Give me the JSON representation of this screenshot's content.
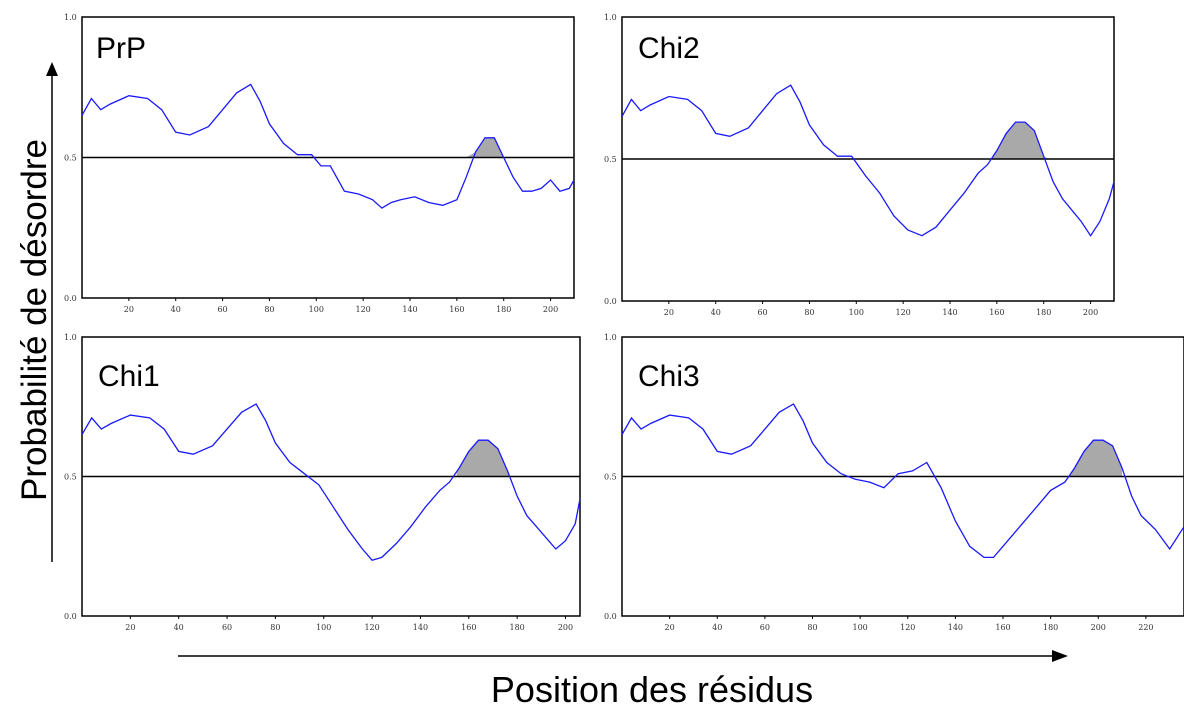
{
  "figure": {
    "ylabel": "Probabilité de désordre",
    "xlabel": "Position des résidus"
  },
  "chart_data": [
    {
      "type": "line",
      "title": "PrP",
      "ylim": [
        0,
        1
      ],
      "xlim": [
        0,
        210
      ],
      "yticks": [
        "0.0",
        "0.5",
        "1.0"
      ],
      "xticks": [
        20,
        40,
        60,
        80,
        100,
        120,
        140,
        160,
        180,
        200
      ],
      "threshold": 0.5,
      "series": [
        {
          "color": "#1a1aff",
          "x": [
            0,
            4,
            8,
            12,
            20,
            28,
            34,
            40,
            46,
            54,
            60,
            66,
            72,
            76,
            80,
            86,
            92,
            98,
            102,
            106,
            112,
            118,
            124,
            128,
            132,
            136,
            142,
            148,
            154,
            160,
            164,
            168,
            172,
            176,
            180,
            184,
            188,
            192,
            196,
            200,
            204,
            208,
            210
          ],
          "y": [
            0.65,
            0.71,
            0.67,
            0.69,
            0.72,
            0.71,
            0.67,
            0.59,
            0.58,
            0.61,
            0.67,
            0.73,
            0.76,
            0.7,
            0.62,
            0.55,
            0.51,
            0.51,
            0.47,
            0.47,
            0.38,
            0.37,
            0.35,
            0.32,
            0.34,
            0.35,
            0.36,
            0.34,
            0.33,
            0.35,
            0.43,
            0.52,
            0.57,
            0.57,
            0.5,
            0.43,
            0.38,
            0.38,
            0.39,
            0.42,
            0.38,
            0.39,
            0.42
          ]
        }
      ],
      "shaded_x": [
        164,
        184
      ]
    },
    {
      "type": "line",
      "title": "Chi2",
      "ylim": [
        0,
        1
      ],
      "xlim": [
        0,
        210
      ],
      "yticks": [
        "0.0",
        "0.5",
        "1.0"
      ],
      "xticks": [
        20,
        40,
        60,
        80,
        100,
        120,
        140,
        160,
        180,
        200
      ],
      "threshold": 0.5,
      "series": [
        {
          "color": "#1a1aff",
          "x": [
            0,
            4,
            8,
            12,
            20,
            28,
            34,
            40,
            46,
            54,
            60,
            66,
            72,
            76,
            80,
            86,
            92,
            98,
            104,
            110,
            116,
            122,
            128,
            134,
            140,
            146,
            152,
            156,
            160,
            164,
            168,
            172,
            176,
            180,
            184,
            188,
            192,
            196,
            200,
            204,
            208,
            210
          ],
          "y": [
            0.65,
            0.71,
            0.67,
            0.69,
            0.72,
            0.71,
            0.67,
            0.59,
            0.58,
            0.61,
            0.67,
            0.73,
            0.76,
            0.7,
            0.62,
            0.55,
            0.51,
            0.51,
            0.44,
            0.38,
            0.3,
            0.25,
            0.23,
            0.26,
            0.32,
            0.38,
            0.45,
            0.48,
            0.53,
            0.59,
            0.63,
            0.63,
            0.6,
            0.51,
            0.42,
            0.36,
            0.32,
            0.28,
            0.23,
            0.28,
            0.36,
            0.42
          ]
        }
      ],
      "shaded_x": [
        158,
        182
      ]
    },
    {
      "type": "line",
      "title": "Chi1",
      "ylim": [
        0,
        1
      ],
      "xlim": [
        0,
        206
      ],
      "yticks": [
        "0.0",
        "0.5",
        "1.0"
      ],
      "xticks": [
        20,
        40,
        60,
        80,
        100,
        120,
        140,
        160,
        180,
        200
      ],
      "threshold": 0.5,
      "series": [
        {
          "color": "#1a1aff",
          "x": [
            0,
            4,
            8,
            12,
            20,
            28,
            34,
            40,
            46,
            54,
            60,
            66,
            72,
            76,
            80,
            86,
            92,
            98,
            104,
            110,
            116,
            120,
            124,
            130,
            136,
            142,
            148,
            152,
            156,
            160,
            164,
            168,
            172,
            176,
            180,
            184,
            188,
            192,
            196,
            200,
            204,
            206
          ],
          "y": [
            0.65,
            0.71,
            0.67,
            0.69,
            0.72,
            0.71,
            0.67,
            0.59,
            0.58,
            0.61,
            0.67,
            0.73,
            0.76,
            0.7,
            0.62,
            0.55,
            0.51,
            0.47,
            0.39,
            0.31,
            0.24,
            0.2,
            0.21,
            0.26,
            0.32,
            0.39,
            0.45,
            0.48,
            0.53,
            0.59,
            0.63,
            0.63,
            0.6,
            0.52,
            0.43,
            0.36,
            0.32,
            0.28,
            0.24,
            0.27,
            0.33,
            0.42
          ]
        }
      ],
      "shaded_x": [
        155,
        177
      ]
    },
    {
      "type": "line",
      "title": "Chi3",
      "ylim": [
        0,
        1
      ],
      "xlim": [
        0,
        236
      ],
      "yticks": [
        "0.0",
        "0.5",
        "1.0"
      ],
      "xticks": [
        20,
        40,
        60,
        80,
        100,
        120,
        140,
        160,
        180,
        200,
        220
      ],
      "threshold": 0.5,
      "series": [
        {
          "color": "#1a1aff",
          "x": [
            0,
            4,
            8,
            12,
            20,
            28,
            34,
            40,
            46,
            54,
            60,
            66,
            72,
            76,
            80,
            86,
            92,
            98,
            104,
            110,
            116,
            122,
            128,
            134,
            140,
            146,
            152,
            156,
            162,
            168,
            174,
            180,
            186,
            190,
            194,
            198,
            202,
            206,
            210,
            214,
            218,
            224,
            230,
            236
          ],
          "y": [
            0.65,
            0.71,
            0.67,
            0.69,
            0.72,
            0.71,
            0.67,
            0.59,
            0.58,
            0.61,
            0.67,
            0.73,
            0.76,
            0.7,
            0.62,
            0.55,
            0.51,
            0.49,
            0.48,
            0.46,
            0.51,
            0.52,
            0.55,
            0.46,
            0.34,
            0.25,
            0.21,
            0.21,
            0.27,
            0.33,
            0.39,
            0.45,
            0.48,
            0.53,
            0.59,
            0.63,
            0.63,
            0.61,
            0.53,
            0.43,
            0.36,
            0.31,
            0.24,
            0.32
          ]
        }
      ],
      "shaded_x": [
        188,
        210
      ]
    }
  ]
}
